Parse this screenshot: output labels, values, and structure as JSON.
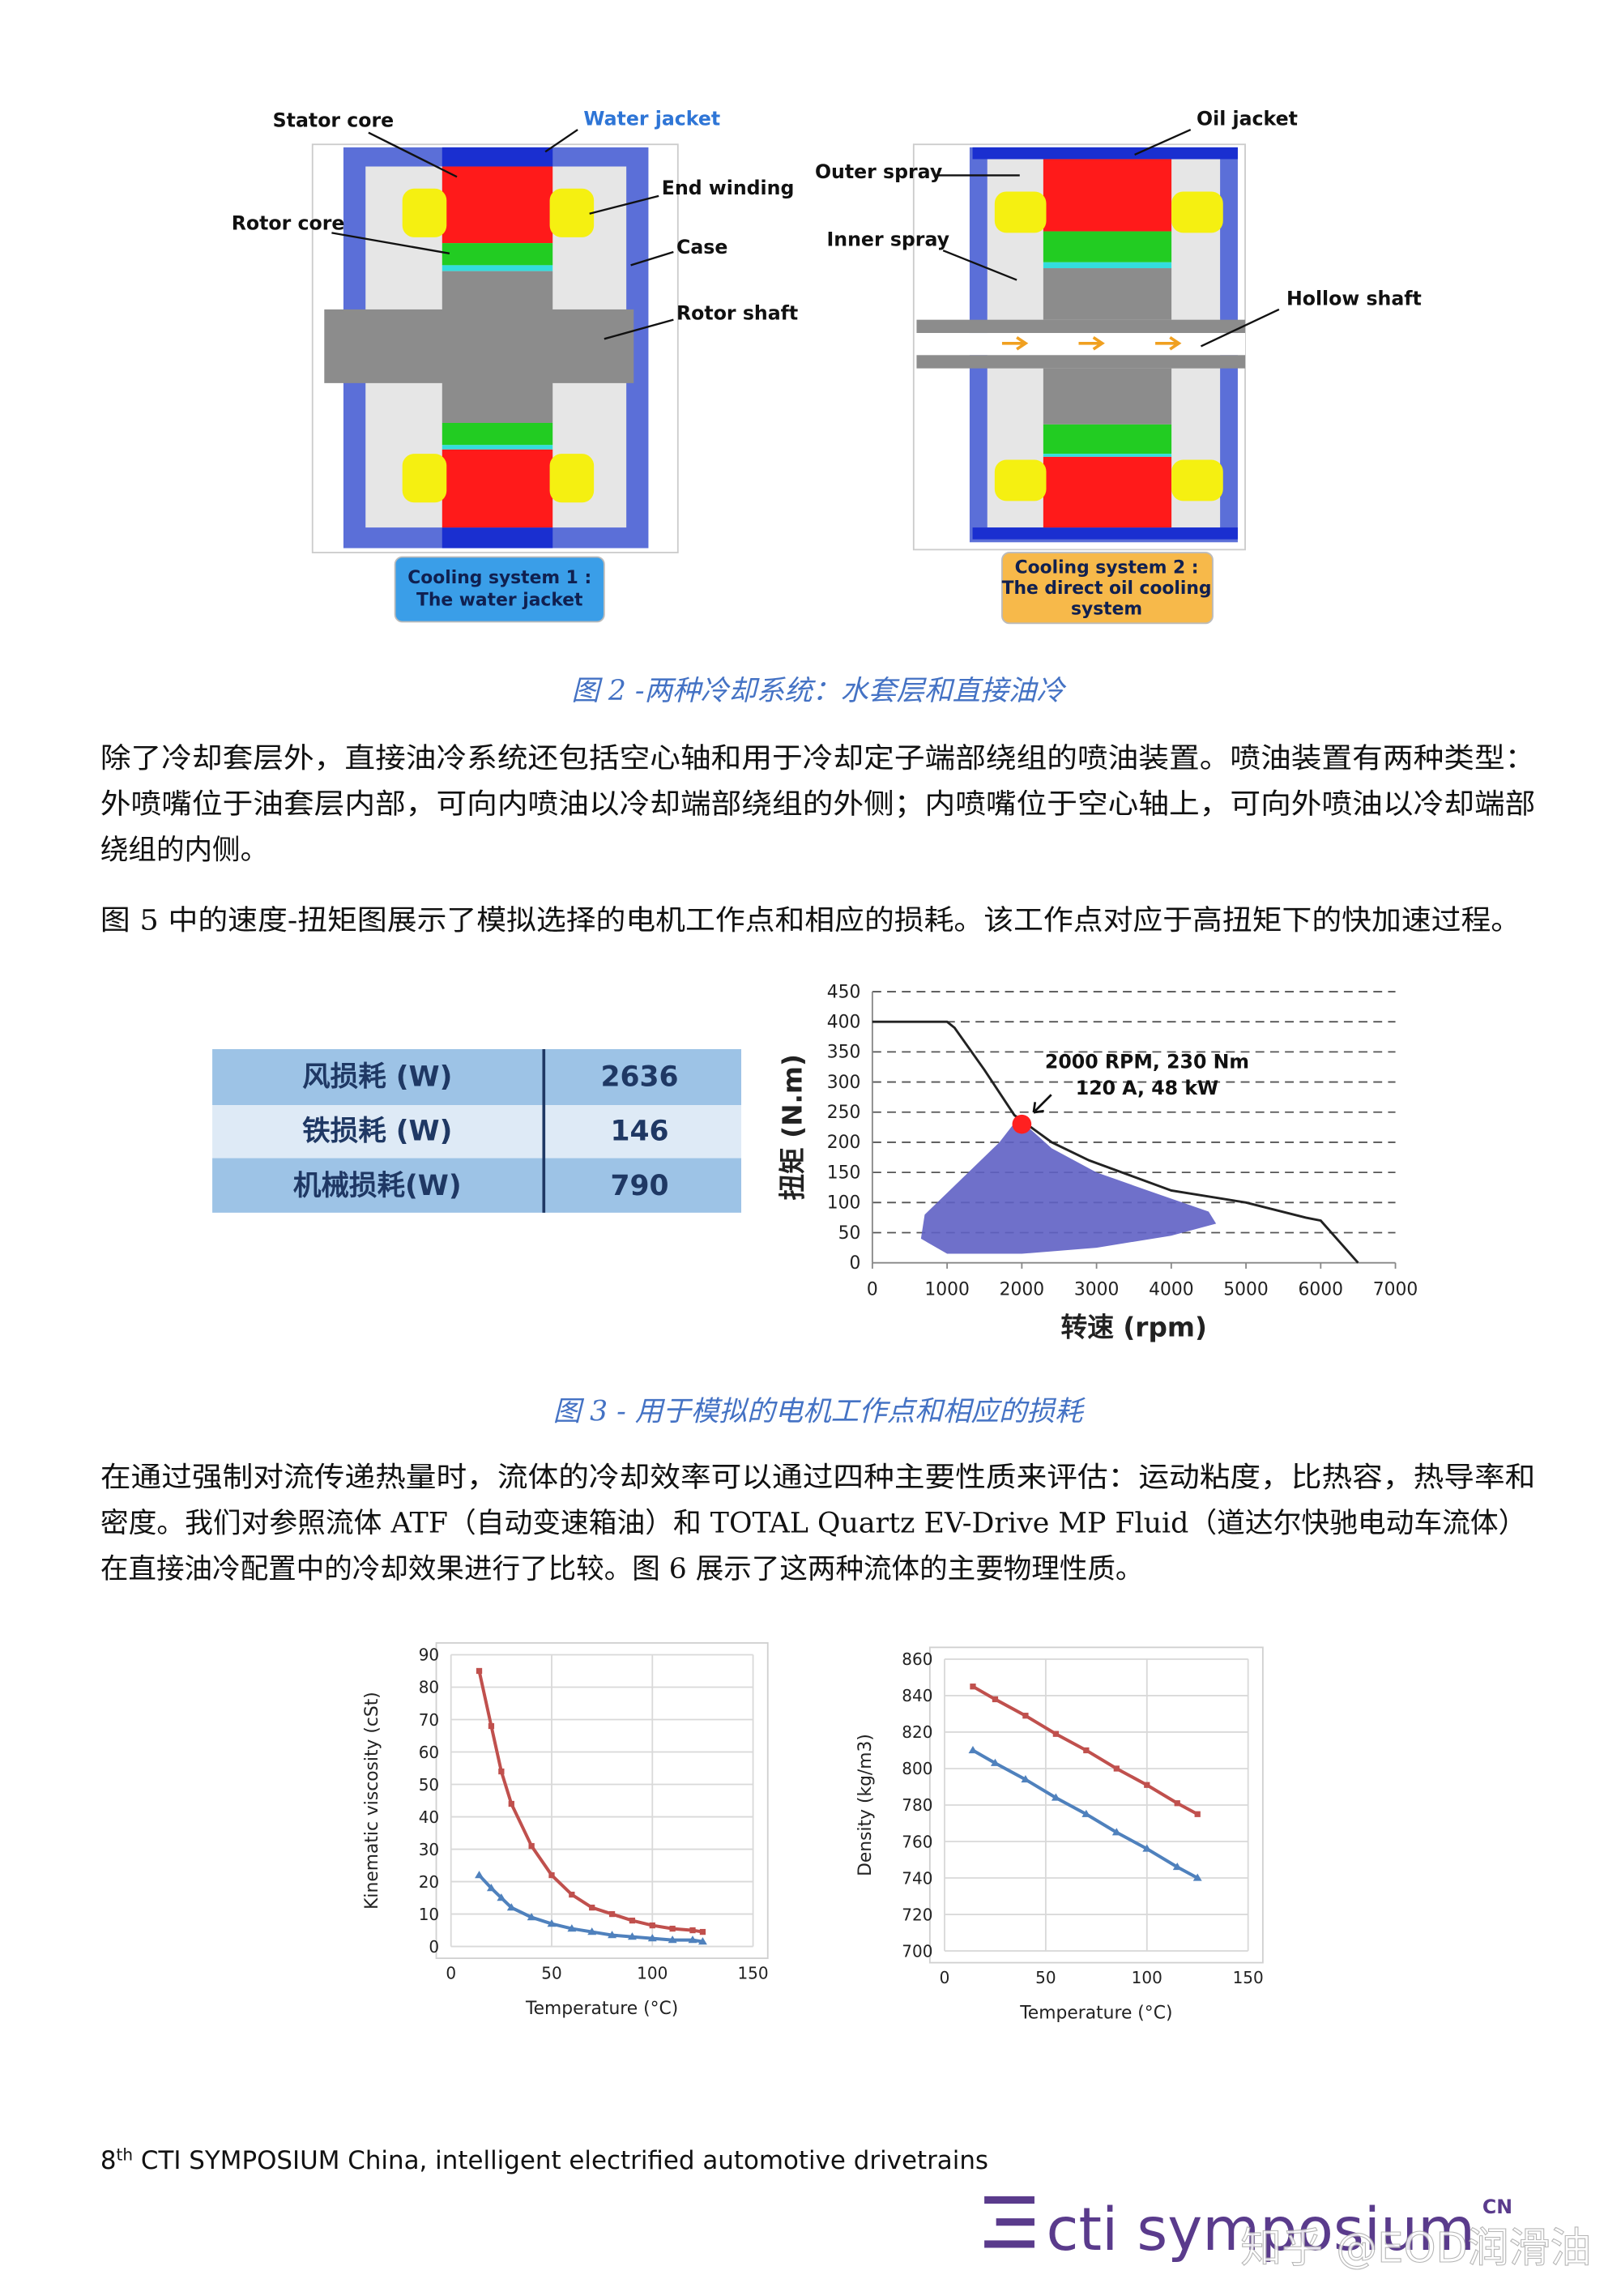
{
  "diagram_1": {
    "labels": [
      "Stator core",
      "Water jacket",
      "End winding",
      "Rotor core",
      "Case",
      "Rotor shaft"
    ],
    "box": [
      "Cooling system 1 :",
      "The water jacket"
    ]
  },
  "diagram_2": {
    "labels": [
      "Oil jacket",
      "Outer spray",
      "Inner spray",
      "Hollow shaft"
    ],
    "box": [
      "Cooling system 2 :",
      "The direct oil cooling",
      "system"
    ]
  },
  "captions": [
    "图 2 -两种冷却系统：水套层和直接油冷",
    "图 3 - 用于模拟的电机工作点和相应的损耗"
  ],
  "paragraphs": [
    [
      "除了冷却套层外，直接油冷系统还包括空心轴和用于冷却定子端部绕组的喷油装置。喷油装置有两种类型：",
      "外喷嘴位于油套层内部，可向内喷油以冷却端部绕组的外侧；内喷嘴位于空心轴上，可向外喷油以冷却端部",
      "绕组的内侧。"
    ],
    [
      "图 5 中的速度-扭矩图展示了模拟选择的电机工作点和相应的损耗。该工作点对应于高扭矩下的快加速过程。"
    ],
    [
      "在通过强制对流传递热量时，流体的冷却效率可以通过四种主要性质来评估：运动粘度，比热容，热导率和",
      "密度。我们对参照流体 ATF（自动变速箱油）和 TOTAL Quartz EV-Drive MP Fluid（道达尔快驰电动车流体）",
      "在直接油冷配置中的冷却效果进行了比较。图 6 展示了这两种流体的主要物理性质。"
    ]
  ],
  "table": {
    "rows": [
      [
        "风损耗 (W)",
        "2636"
      ],
      [
        "铁损耗 (W)",
        "146"
      ],
      [
        "机械损耗(W)",
        "790"
      ]
    ]
  },
  "chart_data": [
    {
      "type": "line",
      "x_label": "转速 (rpm)",
      "y_label": "扭矩 (N.m)",
      "xlim": [
        0,
        7000
      ],
      "xticks": [
        0,
        1000,
        2000,
        3000,
        4000,
        5000,
        6000,
        7000
      ],
      "ylim": [
        0,
        450
      ],
      "yticks": [
        0,
        50,
        100,
        150,
        200,
        250,
        300,
        350,
        400,
        450
      ],
      "grid": "dashed",
      "x": [
        0,
        1000,
        1100,
        1500,
        1900,
        2400,
        2900,
        4000,
        5000,
        5800,
        6000,
        6500
      ],
      "series": [
        {
          "color": "#222222",
          "values": [
            400,
            400,
            390,
            320,
            245,
            200,
            170,
            120,
            100,
            75,
            70,
            0
          ]
        }
      ],
      "region": {
        "color": "#5f61c4",
        "x": [
          1950,
          2400,
          3000,
          3800,
          4500,
          4600,
          4000,
          3000,
          2000,
          1000,
          650,
          700,
          1200,
          1700
        ],
        "y": [
          240,
          190,
          150,
          115,
          85,
          65,
          45,
          25,
          15,
          15,
          40,
          80,
          140,
          200
        ]
      },
      "point": {
        "x": 2000,
        "y": 230,
        "color": "#ff2020",
        "text": [
          "2000 RPM, 230 Nm",
          "120 A, 48 kW"
        ]
      }
    },
    {
      "type": "line",
      "x_label": "Temperature (°C)",
      "y_label": "Kinematic viscosity (cSt)",
      "xlim": [
        0,
        150
      ],
      "xticks": [
        0,
        50,
        100,
        150
      ],
      "ylim": [
        0,
        90
      ],
      "yticks": [
        0,
        10,
        20,
        30,
        40,
        50,
        60,
        70,
        80,
        90
      ],
      "grid": "solid",
      "x": [
        14,
        20,
        25,
        30,
        40,
        50,
        60,
        70,
        80,
        90,
        100,
        110,
        120,
        125
      ],
      "series": [
        {
          "color": "#c0504d",
          "marker": "square",
          "values": [
            85,
            68,
            54,
            44,
            31,
            22,
            16,
            12,
            10,
            8,
            6.5,
            5.5,
            5,
            4.5
          ]
        },
        {
          "color": "#4f81bd",
          "marker": "triangle",
          "values": [
            22,
            18,
            15,
            12,
            9,
            7,
            5.5,
            4.5,
            3.5,
            3,
            2.5,
            2,
            2,
            1.5
          ]
        }
      ]
    },
    {
      "type": "line",
      "x_label": "Temperature (°C)",
      "y_label": "Density (kg/m3)",
      "xlim": [
        0,
        150
      ],
      "xticks": [
        0,
        50,
        100,
        150
      ],
      "ylim": [
        700,
        860
      ],
      "yticks": [
        700,
        720,
        740,
        760,
        780,
        800,
        820,
        840,
        860
      ],
      "grid": "solid",
      "x": [
        14,
        25,
        40,
        55,
        70,
        85,
        100,
        115,
        125
      ],
      "series": [
        {
          "color": "#c0504d",
          "marker": "square",
          "values": [
            845,
            838,
            829,
            819,
            810,
            800,
            791,
            781,
            775
          ]
        },
        {
          "color": "#4f81bd",
          "marker": "triangle",
          "values": [
            810,
            803,
            794,
            784,
            775,
            765,
            756,
            746,
            740
          ]
        }
      ]
    }
  ],
  "footer": {
    "number": "8",
    "sup": "th",
    "text": " CTI SYMPOSIUM China, intelligent electrified automotive drivetrains"
  },
  "logo": {
    "text": "cti symposium",
    "badge": "CN"
  },
  "watermark": "知乎 @EOD润滑油"
}
